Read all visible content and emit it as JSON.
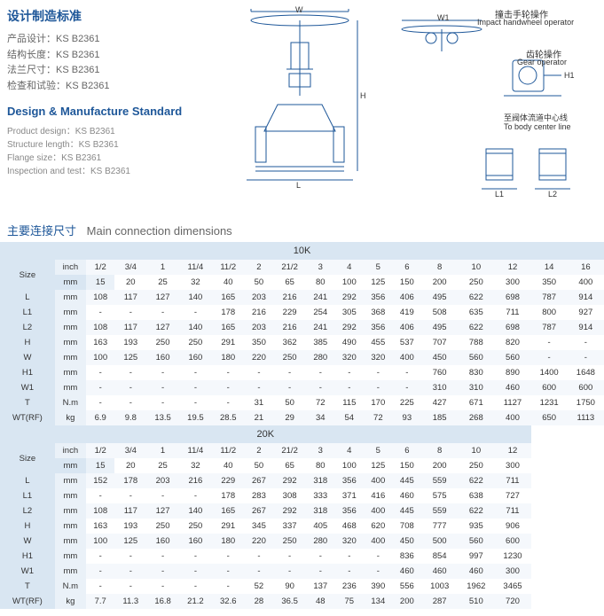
{
  "text": {
    "title_cn": "设计制造标准",
    "specs_cn": [
      "产品设计：KS B2361",
      "结构长度：KS B2361",
      "法兰尺寸：KS B2361",
      "检查和试验：KS B2361"
    ],
    "title_en": "Design & Manufacture Standard",
    "specs_en": [
      "Product design：KS B2361",
      "Structure length：KS B2361",
      "Flange size：KS B2361",
      "Inspection and test：KS B2361"
    ],
    "section_cn": "主要连接尺寸",
    "section_en": "Main connection  dimensions",
    "impact_cn": "撞击手轮操作",
    "impact_en": "Impact handwheel operator",
    "gear_cn": "齿轮操作",
    "gear_en": "Gear operator",
    "body_cn": "至阀体流道中心线",
    "body_en": "To body center line",
    "dim_W": "W",
    "dim_H": "H",
    "dim_L": "L",
    "dim_L1": "L1",
    "dim_L2": "L2",
    "dim_H1": "H1",
    "dim_W1": "W1"
  },
  "colors": {
    "accent": "#1e5799",
    "band": "#b8d0e8",
    "lbl": "#d9e6f2",
    "unit": "#eaf1f8",
    "even": "#f5f8fc",
    "odd": "#ffffff"
  },
  "tables": {
    "t10k": {
      "title": "10K",
      "size_inch": [
        "1/2",
        "3/4",
        "1",
        "11/4",
        "11/2",
        "2",
        "21/2",
        "3",
        "4",
        "5",
        "6",
        "8",
        "10",
        "12",
        "14",
        "16"
      ],
      "size_mm": [
        15,
        20,
        25,
        32,
        40,
        50,
        65,
        80,
        100,
        125,
        150,
        200,
        250,
        300,
        350,
        400
      ],
      "rows": [
        {
          "n": "L",
          "u": "mm",
          "v": [
            108,
            117,
            127,
            140,
            165,
            203,
            216,
            241,
            292,
            356,
            406,
            495,
            622,
            698,
            787,
            914
          ]
        },
        {
          "n": "L1",
          "u": "mm",
          "v": [
            "-",
            "-",
            "-",
            "-",
            178,
            216,
            229,
            254,
            305,
            368,
            419,
            508,
            635,
            711,
            800,
            927
          ]
        },
        {
          "n": "L2",
          "u": "mm",
          "v": [
            108,
            117,
            127,
            140,
            165,
            203,
            216,
            241,
            292,
            356,
            406,
            495,
            622,
            698,
            787,
            914
          ]
        },
        {
          "n": "H",
          "u": "mm",
          "v": [
            163,
            193,
            250,
            250,
            291,
            350,
            362,
            385,
            490,
            455,
            537,
            707,
            788,
            820,
            "-",
            "-"
          ]
        },
        {
          "n": "W",
          "u": "mm",
          "v": [
            100,
            125,
            160,
            160,
            180,
            220,
            250,
            280,
            320,
            320,
            400,
            450,
            560,
            560,
            "-",
            "-"
          ]
        },
        {
          "n": "H1",
          "u": "mm",
          "v": [
            "-",
            "-",
            "-",
            "-",
            "-",
            "-",
            "-",
            "-",
            "-",
            "-",
            "-",
            760,
            830,
            890,
            1400,
            1648
          ]
        },
        {
          "n": "W1",
          "u": "mm",
          "v": [
            "-",
            "-",
            "-",
            "-",
            "-",
            "-",
            "-",
            "-",
            "-",
            "-",
            "-",
            310,
            310,
            460,
            600,
            600
          ]
        },
        {
          "n": "T",
          "u": "N.m",
          "v": [
            "-",
            "-",
            "-",
            "-",
            "-",
            31,
            50,
            72,
            115,
            170,
            225,
            427,
            671,
            1127,
            1231,
            1750
          ]
        },
        {
          "n": "WT(RF)",
          "u": "kg",
          "v": [
            6.9,
            9.8,
            13.5,
            19.5,
            28.5,
            21,
            29,
            34,
            54,
            72,
            93,
            185,
            268,
            400,
            650,
            1113
          ]
        }
      ]
    },
    "t20k": {
      "title": "20K",
      "size_inch": [
        "1/2",
        "3/4",
        "1",
        "11/4",
        "11/2",
        "2",
        "21/2",
        "3",
        "4",
        "5",
        "6",
        "8",
        "10",
        "12"
      ],
      "size_mm": [
        15,
        20,
        25,
        32,
        40,
        50,
        65,
        80,
        100,
        125,
        150,
        200,
        250,
        300
      ],
      "rows": [
        {
          "n": "L",
          "u": "mm",
          "v": [
            152,
            178,
            203,
            216,
            229,
            267,
            292,
            318,
            356,
            400,
            445,
            559,
            622,
            711
          ]
        },
        {
          "n": "L1",
          "u": "mm",
          "v": [
            "-",
            "-",
            "-",
            "-",
            178,
            283,
            308,
            333,
            371,
            416,
            460,
            575,
            638,
            727
          ]
        },
        {
          "n": "L2",
          "u": "mm",
          "v": [
            108,
            117,
            127,
            140,
            165,
            267,
            292,
            318,
            356,
            400,
            445,
            559,
            622,
            711
          ]
        },
        {
          "n": "H",
          "u": "mm",
          "v": [
            163,
            193,
            250,
            250,
            291,
            345,
            337,
            405,
            468,
            620,
            708,
            777,
            935,
            906
          ]
        },
        {
          "n": "W",
          "u": "mm",
          "v": [
            100,
            125,
            160,
            160,
            180,
            220,
            250,
            280,
            320,
            400,
            450,
            500,
            560,
            600
          ]
        },
        {
          "n": "H1",
          "u": "mm",
          "v": [
            "-",
            "-",
            "-",
            "-",
            "-",
            "-",
            "-",
            "-",
            "-",
            "-",
            836,
            854,
            997,
            1230
          ]
        },
        {
          "n": "W1",
          "u": "mm",
          "v": [
            "-",
            "-",
            "-",
            "-",
            "-",
            "-",
            "-",
            "-",
            "-",
            "-",
            460,
            460,
            460,
            300
          ]
        },
        {
          "n": "T",
          "u": "N.m",
          "v": [
            "-",
            "-",
            "-",
            "-",
            "-",
            52,
            90,
            137,
            236,
            390,
            556,
            1003,
            1962,
            3465
          ]
        },
        {
          "n": "WT(RF)",
          "u": "kg",
          "v": [
            7.7,
            11.3,
            16.8,
            21.2,
            32.6,
            28,
            36.5,
            48,
            75,
            134,
            200,
            287,
            510,
            720
          ]
        }
      ]
    }
  }
}
